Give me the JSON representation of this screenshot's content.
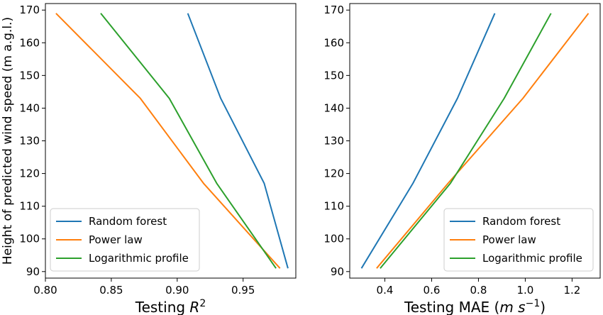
{
  "chart_data": [
    {
      "type": "line",
      "ylabel": "Height of predicted wind speed (m a.g.l.)",
      "xlabel_prefix": "Testing ",
      "xlabel_var": "R",
      "xlabel_sup": "2",
      "xlim": [
        0.8,
        0.99
      ],
      "ylim": [
        88,
        172
      ],
      "xticks": [
        0.8,
        0.85,
        0.9,
        0.95
      ],
      "xtick_labels": [
        "0.80",
        "0.85",
        "0.90",
        "0.95"
      ],
      "yticks": [
        90,
        100,
        110,
        120,
        130,
        140,
        150,
        160,
        170
      ],
      "ytick_labels": [
        "90",
        "100",
        "110",
        "120",
        "130",
        "140",
        "150",
        "160",
        "170"
      ],
      "legend_position": "lower-left",
      "series": [
        {
          "name": "Random forest",
          "color": "#1f77b4",
          "points": [
            [
              0.984,
              91
            ],
            [
              0.966,
              117
            ],
            [
              0.933,
              143
            ],
            [
              0.908,
              169
            ]
          ]
        },
        {
          "name": "Power law",
          "color": "#ff7f0e",
          "points": [
            [
              0.978,
              91
            ],
            [
              0.92,
              117
            ],
            [
              0.872,
              143
            ],
            [
              0.808,
              169
            ]
          ]
        },
        {
          "name": "Logarithmic profile",
          "color": "#2ca02c",
          "points": [
            [
              0.975,
              91
            ],
            [
              0.93,
              117
            ],
            [
              0.894,
              143
            ],
            [
              0.842,
              169
            ]
          ]
        }
      ]
    },
    {
      "type": "line",
      "ylabel": "",
      "xlabel_prefix": "Testing MAE (",
      "xlabel_unit": "m s",
      "xlabel_sup": "−1",
      "xlabel_suffix": ")",
      "xlim": [
        0.25,
        1.32
      ],
      "ylim": [
        88,
        172
      ],
      "xticks": [
        0.4,
        0.6,
        0.8,
        1.0,
        1.2
      ],
      "xtick_labels": [
        "0.4",
        "0.6",
        "0.8",
        "1.0",
        "1.2"
      ],
      "yticks": [
        90,
        100,
        110,
        120,
        130,
        140,
        150,
        160,
        170
      ],
      "ytick_labels": [
        "90",
        "100",
        "110",
        "120",
        "130",
        "140",
        "150",
        "160",
        "170"
      ],
      "legend_position": "lower-right",
      "series": [
        {
          "name": "Random forest",
          "color": "#1f77b4",
          "points": [
            [
              0.3,
              91
            ],
            [
              0.52,
              117
            ],
            [
              0.71,
              143
            ],
            [
              0.87,
              169
            ]
          ]
        },
        {
          "name": "Power law",
          "color": "#ff7f0e",
          "points": [
            [
              0.365,
              91
            ],
            [
              0.67,
              117
            ],
            [
              0.99,
              143
            ],
            [
              1.27,
              169
            ]
          ]
        },
        {
          "name": "Logarithmic profile",
          "color": "#2ca02c",
          "points": [
            [
              0.38,
              91
            ],
            [
              0.68,
              117
            ],
            [
              0.91,
              143
            ],
            [
              1.11,
              169
            ]
          ]
        }
      ]
    }
  ]
}
